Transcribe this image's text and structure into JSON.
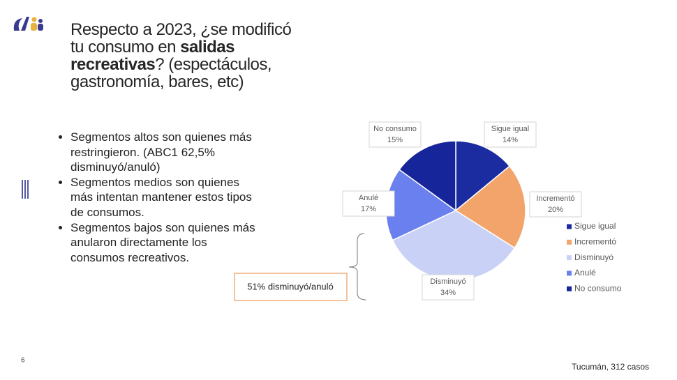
{
  "title_parts": [
    "Respecto a 2023, ¿se modificó tu consumo en ",
    "salidas recreativas",
    "? (espectáculos, gastronomía, bares, etc)"
  ],
  "bullets": [
    "Segmentos altos son  quienes más restringieron. (ABC1 62,5% disminuyó/anuló)",
    "Segmentos medios son quienes más intentan mantener estos tipos de consumos.",
    "Segmentos bajos son quienes más anularon directamente los consumos recreativos."
  ],
  "annotation": "51% disminuyó/anuló",
  "page_number": "6",
  "footer": "Tucumán, 312 casos",
  "chart_data": {
    "type": "pie",
    "categories": [
      "Sigue igual",
      "Incrementó",
      "Disminuyó",
      "Anulé",
      "No consumo"
    ],
    "values": [
      14,
      20,
      34,
      17,
      15
    ],
    "value_labels": [
      "14%",
      "20%",
      "34%",
      "17%",
      "15%"
    ],
    "colors": [
      "#1b2ba0",
      "#f2a46a",
      "#c9d1f6",
      "#6a80ee",
      "#17259a"
    ],
    "legend": "right"
  }
}
